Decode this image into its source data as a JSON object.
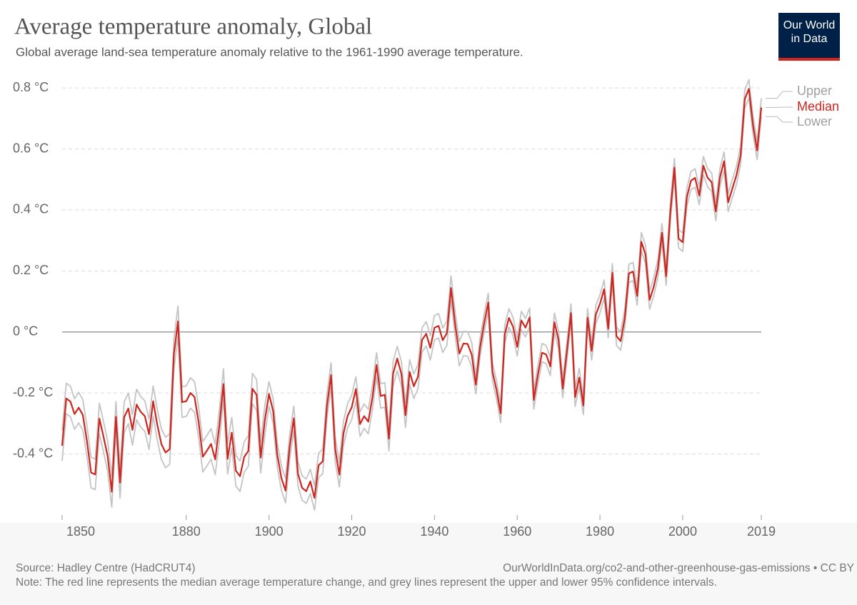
{
  "chart_data": {
    "type": "line",
    "title": "Average temperature anomaly, Global",
    "subtitle": "Global average land-sea temperature anomaly relative to the 1961-1990 average temperature.",
    "source": "Source: Hadley Centre (HadCRUT4)",
    "url": "OurWorldInData.org/co2-and-other-greenhouse-gas-emissions • CC BY",
    "note": "Note: The red line represents the median average temperature change, and grey lines represent the upper and lower 95% confidence intervals.",
    "logo": [
      "Our World",
      "in Data"
    ],
    "x": [
      1850,
      1851,
      1852,
      1853,
      1854,
      1855,
      1856,
      1857,
      1858,
      1859,
      1860,
      1861,
      1862,
      1863,
      1864,
      1865,
      1866,
      1867,
      1868,
      1869,
      1870,
      1871,
      1872,
      1873,
      1874,
      1875,
      1876,
      1877,
      1878,
      1879,
      1880,
      1881,
      1882,
      1883,
      1884,
      1885,
      1886,
      1887,
      1888,
      1889,
      1890,
      1891,
      1892,
      1893,
      1894,
      1895,
      1896,
      1897,
      1898,
      1899,
      1900,
      1901,
      1902,
      1903,
      1904,
      1905,
      1906,
      1907,
      1908,
      1909,
      1910,
      1911,
      1912,
      1913,
      1914,
      1915,
      1916,
      1917,
      1918,
      1919,
      1920,
      1921,
      1922,
      1923,
      1924,
      1925,
      1926,
      1927,
      1928,
      1929,
      1930,
      1931,
      1932,
      1933,
      1934,
      1935,
      1936,
      1937,
      1938,
      1939,
      1940,
      1941,
      1942,
      1943,
      1944,
      1945,
      1946,
      1947,
      1948,
      1949,
      1950,
      1951,
      1952,
      1953,
      1954,
      1955,
      1956,
      1957,
      1958,
      1959,
      1960,
      1961,
      1962,
      1963,
      1964,
      1965,
      1966,
      1967,
      1968,
      1969,
      1970,
      1971,
      1972,
      1973,
      1974,
      1975,
      1976,
      1977,
      1978,
      1979,
      1980,
      1981,
      1982,
      1983,
      1984,
      1985,
      1986,
      1987,
      1988,
      1989,
      1990,
      1991,
      1992,
      1993,
      1994,
      1995,
      1996,
      1997,
      1998,
      1999,
      2000,
      2001,
      2002,
      2003,
      2004,
      2005,
      2006,
      2007,
      2008,
      2009,
      2010,
      2011,
      2012,
      2013,
      2014,
      2015,
      2016,
      2017,
      2018,
      2019
    ],
    "series": [
      {
        "name": "Upper",
        "color": "#c4c4c4",
        "values": [
          -0.323,
          -0.168,
          -0.178,
          -0.219,
          -0.198,
          -0.222,
          -0.308,
          -0.411,
          -0.417,
          -0.234,
          -0.293,
          -0.357,
          -0.474,
          -0.228,
          -0.444,
          -0.229,
          -0.201,
          -0.271,
          -0.188,
          -0.212,
          -0.226,
          -0.285,
          -0.177,
          -0.254,
          -0.318,
          -0.345,
          -0.334,
          -0.025,
          0.085,
          -0.18,
          -0.177,
          -0.15,
          -0.163,
          -0.246,
          -0.359,
          -0.339,
          -0.317,
          -0.368,
          -0.257,
          -0.121,
          -0.366,
          -0.28,
          -0.405,
          -0.423,
          -0.36,
          -0.34,
          -0.136,
          -0.156,
          -0.362,
          -0.239,
          -0.163,
          -0.219,
          -0.362,
          -0.439,
          -0.48,
          -0.337,
          -0.243,
          -0.425,
          -0.471,
          -0.482,
          -0.45,
          -0.504,
          -0.397,
          -0.384,
          -0.204,
          -0.101,
          -0.343,
          -0.428,
          -0.293,
          -0.235,
          -0.207,
          -0.147,
          -0.262,
          -0.236,
          -0.254,
          -0.175,
          -0.068,
          -0.17,
          -0.166,
          -0.31,
          -0.097,
          -0.047,
          -0.097,
          -0.233,
          -0.091,
          -0.138,
          -0.107,
          0.014,
          0.034,
          -0.012,
          0.054,
          0.06,
          0.013,
          0.036,
          0.184,
          0.065,
          -0.031,
          0.002,
          0.001,
          -0.034,
          -0.143,
          -0.022,
          0.058,
          0.127,
          -0.099,
          -0.16,
          -0.237,
          0.023,
          0.076,
          0.047,
          -0.019,
          0.068,
          0.044,
          0.078,
          -0.193,
          -0.11,
          -0.038,
          -0.044,
          -0.083,
          0.062,
          0.003,
          -0.156,
          -0.035,
          0.092,
          -0.184,
          -0.119,
          -0.211,
          0.077,
          -0.032,
          0.087,
          0.122,
          0.17,
          0.041,
          0.224,
          0.016,
          0.0,
          0.075,
          0.222,
          0.228,
          0.148,
          0.326,
          0.284,
          0.135,
          0.178,
          0.238,
          0.355,
          0.213,
          0.42,
          0.569,
          0.336,
          0.324,
          0.471,
          0.526,
          0.535,
          0.477,
          0.575,
          0.536,
          0.521,
          0.425,
          0.536,
          0.59,
          0.455,
          0.5,
          0.544,
          0.609,
          0.793,
          0.827,
          0.707,
          0.625,
          0.766
        ]
      },
      {
        "name": "Median",
        "color": "#ce261e",
        "values": [
          -0.373,
          -0.218,
          -0.228,
          -0.269,
          -0.248,
          -0.272,
          -0.358,
          -0.461,
          -0.467,
          -0.284,
          -0.343,
          -0.407,
          -0.524,
          -0.278,
          -0.494,
          -0.279,
          -0.251,
          -0.321,
          -0.238,
          -0.262,
          -0.276,
          -0.335,
          -0.227,
          -0.304,
          -0.368,
          -0.395,
          -0.384,
          -0.075,
          0.035,
          -0.23,
          -0.227,
          -0.2,
          -0.213,
          -0.296,
          -0.409,
          -0.389,
          -0.367,
          -0.418,
          -0.307,
          -0.171,
          -0.416,
          -0.33,
          -0.455,
          -0.473,
          -0.41,
          -0.39,
          -0.186,
          -0.206,
          -0.412,
          -0.289,
          -0.203,
          -0.259,
          -0.402,
          -0.479,
          -0.52,
          -0.377,
          -0.283,
          -0.465,
          -0.511,
          -0.522,
          -0.49,
          -0.544,
          -0.437,
          -0.424,
          -0.244,
          -0.141,
          -0.383,
          -0.468,
          -0.333,
          -0.275,
          -0.247,
          -0.187,
          -0.302,
          -0.276,
          -0.294,
          -0.215,
          -0.108,
          -0.21,
          -0.206,
          -0.35,
          -0.137,
          -0.087,
          -0.137,
          -0.273,
          -0.131,
          -0.178,
          -0.147,
          -0.026,
          -0.006,
          -0.052,
          0.014,
          0.02,
          -0.027,
          -0.004,
          0.144,
          0.025,
          -0.071,
          -0.038,
          -0.039,
          -0.074,
          -0.173,
          -0.052,
          0.028,
          0.097,
          -0.129,
          -0.19,
          -0.267,
          -0.007,
          0.046,
          0.017,
          -0.049,
          0.038,
          0.014,
          0.048,
          -0.223,
          -0.14,
          -0.068,
          -0.074,
          -0.113,
          0.032,
          -0.027,
          -0.186,
          -0.065,
          0.062,
          -0.214,
          -0.149,
          -0.241,
          0.047,
          -0.062,
          0.057,
          0.092,
          0.14,
          0.011,
          0.194,
          -0.014,
          -0.03,
          0.045,
          0.192,
          0.198,
          0.118,
          0.296,
          0.254,
          0.105,
          0.148,
          0.208,
          0.325,
          0.183,
          0.39,
          0.539,
          0.306,
          0.294,
          0.441,
          0.496,
          0.505,
          0.447,
          0.545,
          0.506,
          0.491,
          0.395,
          0.506,
          0.56,
          0.425,
          0.47,
          0.514,
          0.579,
          0.763,
          0.797,
          0.677,
          0.595,
          0.736
        ]
      },
      {
        "name": "Lower",
        "color": "#c4c4c4",
        "values": [
          -0.423,
          -0.268,
          -0.278,
          -0.319,
          -0.298,
          -0.322,
          -0.408,
          -0.511,
          -0.517,
          -0.334,
          -0.393,
          -0.457,
          -0.574,
          -0.328,
          -0.544,
          -0.329,
          -0.301,
          -0.371,
          -0.288,
          -0.312,
          -0.326,
          -0.385,
          -0.277,
          -0.354,
          -0.418,
          -0.445,
          -0.434,
          -0.125,
          -0.015,
          -0.28,
          -0.277,
          -0.25,
          -0.263,
          -0.346,
          -0.459,
          -0.439,
          -0.417,
          -0.468,
          -0.357,
          -0.221,
          -0.466,
          -0.38,
          -0.505,
          -0.523,
          -0.46,
          -0.44,
          -0.236,
          -0.256,
          -0.462,
          -0.339,
          -0.243,
          -0.299,
          -0.442,
          -0.519,
          -0.56,
          -0.417,
          -0.323,
          -0.505,
          -0.551,
          -0.562,
          -0.53,
          -0.584,
          -0.477,
          -0.464,
          -0.284,
          -0.181,
          -0.423,
          -0.508,
          -0.373,
          -0.315,
          -0.287,
          -0.227,
          -0.342,
          -0.316,
          -0.334,
          -0.255,
          -0.148,
          -0.25,
          -0.246,
          -0.39,
          -0.177,
          -0.127,
          -0.177,
          -0.313,
          -0.171,
          -0.218,
          -0.187,
          -0.066,
          -0.046,
          -0.092,
          -0.026,
          -0.02,
          -0.067,
          -0.044,
          0.104,
          -0.015,
          -0.111,
          -0.078,
          -0.079,
          -0.114,
          -0.203,
          -0.082,
          -0.002,
          0.067,
          -0.159,
          -0.22,
          -0.297,
          -0.037,
          0.016,
          -0.013,
          -0.079,
          0.008,
          -0.016,
          0.018,
          -0.253,
          -0.17,
          -0.098,
          -0.104,
          -0.143,
          0.002,
          -0.057,
          -0.216,
          -0.095,
          0.032,
          -0.244,
          -0.179,
          -0.271,
          0.017,
          -0.092,
          0.027,
          0.062,
          0.11,
          -0.019,
          0.164,
          -0.044,
          -0.06,
          0.015,
          0.162,
          0.168,
          0.088,
          0.266,
          0.224,
          0.075,
          0.118,
          0.178,
          0.295,
          0.153,
          0.36,
          0.509,
          0.276,
          0.264,
          0.411,
          0.466,
          0.475,
          0.417,
          0.515,
          0.476,
          0.461,
          0.365,
          0.476,
          0.53,
          0.395,
          0.44,
          0.484,
          0.549,
          0.733,
          0.767,
          0.647,
          0.565,
          0.706
        ]
      }
    ],
    "xlim": [
      1850,
      2019
    ],
    "xticks": [
      1850,
      1880,
      1900,
      1920,
      1940,
      1960,
      1980,
      2000,
      2019
    ],
    "ylim": [
      -0.6,
      0.84
    ],
    "yticks": [
      {
        "value": -0.4,
        "label": "-0.4 °C"
      },
      {
        "value": -0.2,
        "label": "-0.2 °C"
      },
      {
        "value": 0,
        "label": "0 °C"
      },
      {
        "value": 0.2,
        "label": "0.2 °C"
      },
      {
        "value": 0.4,
        "label": "0.4 °C"
      },
      {
        "value": 0.6,
        "label": "0.6 °C"
      },
      {
        "value": 0.8,
        "label": "0.8 °C"
      }
    ],
    "grid": true
  }
}
